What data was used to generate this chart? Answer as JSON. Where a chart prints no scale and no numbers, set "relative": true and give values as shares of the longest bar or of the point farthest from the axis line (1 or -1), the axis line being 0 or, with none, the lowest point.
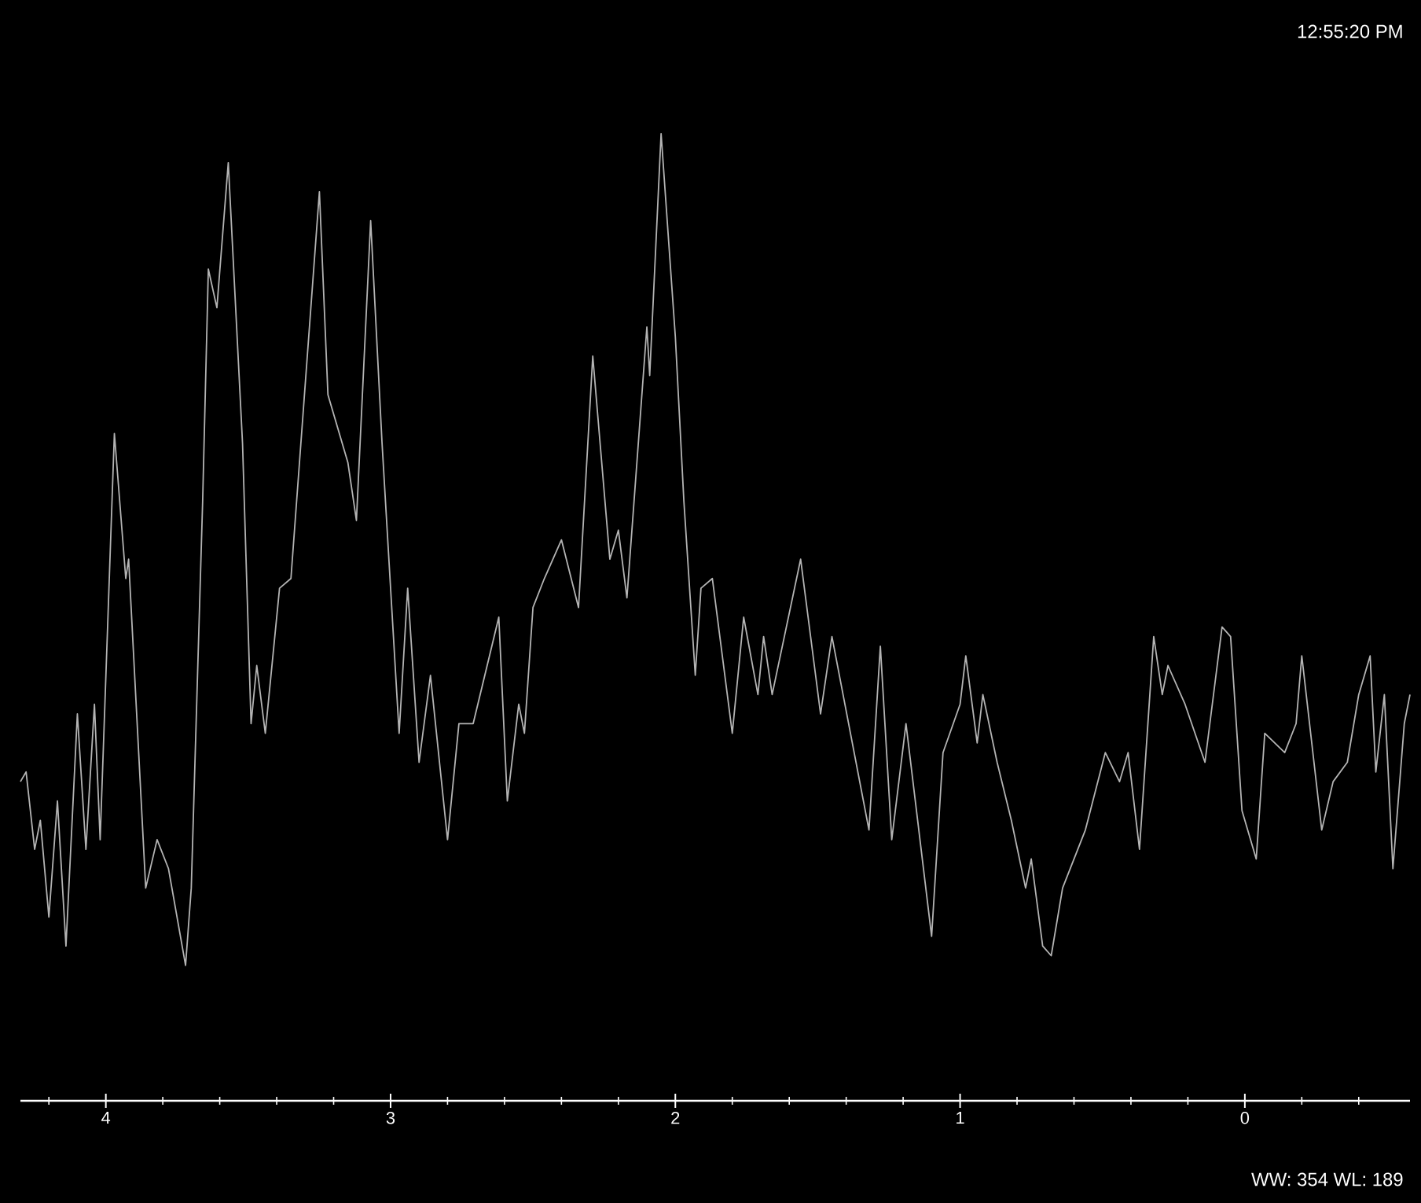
{
  "chart_data": {
    "type": "line",
    "relative": true,
    "xlim": [
      4.3,
      -0.58
    ],
    "xticks": [
      4,
      3,
      2,
      1,
      0,
      {
        "value": 4.2,
        "label": null
      },
      {
        "value": 3.8,
        "label": null
      },
      {
        "value": 3.6,
        "label": null
      },
      {
        "value": 3.4,
        "label": null
      },
      {
        "value": 3.2,
        "label": null
      },
      {
        "value": 2.8,
        "label": null
      },
      {
        "value": 2.6,
        "label": null
      },
      {
        "value": 2.4,
        "label": null
      },
      {
        "value": 2.2,
        "label": null
      },
      {
        "value": 1.8,
        "label": null
      },
      {
        "value": 1.6,
        "label": null
      },
      {
        "value": 1.4,
        "label": null
      },
      {
        "value": 1.2,
        "label": null
      },
      {
        "value": 0.8,
        "label": null
      },
      {
        "value": 0.6,
        "label": null
      },
      {
        "value": 0.4,
        "label": null
      },
      {
        "value": 0.2,
        "label": null
      },
      {
        "value": -0.2,
        "label": null
      },
      {
        "value": -0.4,
        "label": null
      }
    ],
    "tick_labels": "x",
    "marker": "none",
    "line_style": "solid",
    "annotations": [
      "12:55:20 PM",
      "WW: 354 WL: 189"
    ],
    "series": [
      {
        "color": "#b4b4b4",
        "x": [
          4.3,
          4.28,
          4.25,
          4.23,
          4.2,
          4.17,
          4.14,
          4.1,
          4.07,
          4.04,
          4.02,
          3.97,
          3.93,
          3.92,
          3.86,
          3.82,
          3.78,
          3.72,
          3.7,
          3.66,
          3.64,
          3.61,
          3.57,
          3.52,
          3.49,
          3.47,
          3.44,
          3.39,
          3.35,
          3.25,
          3.22,
          3.15,
          3.12,
          3.07,
          3.03,
          2.97,
          2.94,
          2.9,
          2.86,
          2.8,
          2.76,
          2.71,
          2.62,
          2.59,
          2.55,
          2.53,
          2.5,
          2.46,
          2.4,
          2.34,
          2.29,
          2.23,
          2.2,
          2.17,
          2.1,
          2.09,
          2.05,
          2.0,
          1.97,
          1.93,
          1.91,
          1.87,
          1.8,
          1.76,
          1.71,
          1.69,
          1.66,
          1.56,
          1.49,
          1.45,
          1.32,
          1.28,
          1.24,
          1.19,
          1.1,
          1.06,
          1.0,
          0.98,
          0.94,
          0.92,
          0.87,
          0.82,
          0.77,
          0.75,
          0.71,
          0.68,
          0.64,
          0.56,
          0.49,
          0.44,
          0.41,
          0.37,
          0.32,
          0.29,
          0.27,
          0.21,
          0.14,
          0.08,
          0.05,
          0.01,
          -0.04,
          -0.07,
          -0.14,
          -0.18,
          -0.2,
          -0.27,
          -0.31,
          -0.36,
          -0.4,
          -0.44,
          -0.46,
          -0.49,
          -0.52,
          -0.56,
          -0.58
        ],
        "values": [
          0.33,
          0.34,
          0.26,
          0.29,
          0.19,
          0.31,
          0.16,
          0.4,
          0.26,
          0.41,
          0.27,
          0.69,
          0.54,
          0.56,
          0.22,
          0.27,
          0.24,
          0.14,
          0.22,
          0.62,
          0.86,
          0.82,
          0.97,
          0.68,
          0.39,
          0.45,
          0.38,
          0.53,
          0.54,
          0.94,
          0.73,
          0.66,
          0.6,
          0.91,
          0.68,
          0.38,
          0.53,
          0.35,
          0.44,
          0.27,
          0.39,
          0.39,
          0.5,
          0.31,
          0.41,
          0.38,
          0.51,
          0.54,
          0.58,
          0.51,
          0.77,
          0.56,
          0.59,
          0.52,
          0.8,
          0.75,
          1.0,
          0.79,
          0.62,
          0.44,
          0.53,
          0.54,
          0.38,
          0.5,
          0.42,
          0.48,
          0.42,
          0.56,
          0.4,
          0.48,
          0.28,
          0.47,
          0.27,
          0.39,
          0.17,
          0.36,
          0.41,
          0.46,
          0.37,
          0.42,
          0.35,
          0.29,
          0.22,
          0.25,
          0.16,
          0.15,
          0.22,
          0.28,
          0.36,
          0.33,
          0.36,
          0.26,
          0.48,
          0.42,
          0.45,
          0.41,
          0.35,
          0.49,
          0.48,
          0.3,
          0.25,
          0.38,
          0.36,
          0.39,
          0.46,
          0.28,
          0.33,
          0.35,
          0.42,
          0.46,
          0.34,
          0.42,
          0.24,
          0.39,
          0.42
        ]
      }
    ]
  }
}
